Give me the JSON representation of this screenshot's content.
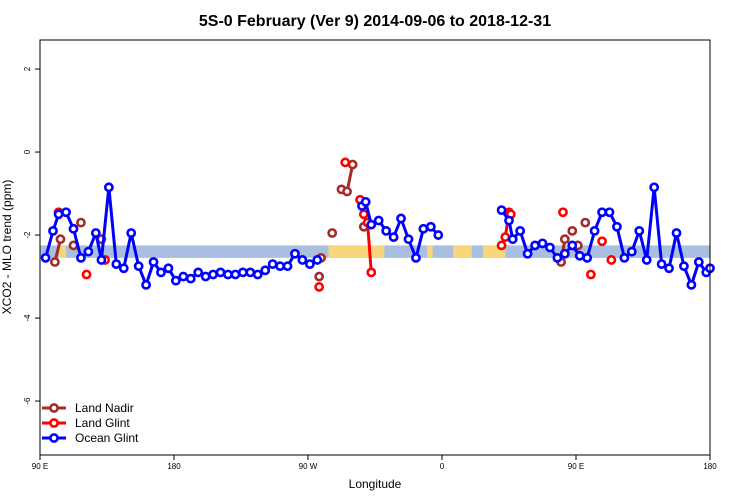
{
  "chart_data": {
    "type": "line",
    "title": "5S-0 February (Ver 9)   2014-09-06 to 2018-12-31",
    "xlabel": "Longitude",
    "ylabel": "XCO2 - MLO trend (ppm)",
    "xlim": [
      90,
      450
    ],
    "ylim": [
      -7.3,
      2.7
    ],
    "x_ticks": [
      {
        "value": 90,
        "label": "90 E"
      },
      {
        "value": 162,
        "label": "180"
      },
      {
        "value": 234,
        "label": "90 W"
      },
      {
        "value": 306,
        "label": "0"
      },
      {
        "value": 378,
        "label": "90 E"
      },
      {
        "value": 450,
        "label": "180"
      }
    ],
    "y_ticks": [
      {
        "value": 2,
        "label": "2"
      },
      {
        "value": 0,
        "label": "0"
      },
      {
        "value": -2,
        "label": "-2"
      },
      {
        "value": -4,
        "label": "-4"
      },
      {
        "value": -6,
        "label": "-6"
      }
    ],
    "band": {
      "y_min": -2.55,
      "y_max": -2.25,
      "color": "#a8bfe0",
      "highlight_color": "#f7d77a",
      "highlights": [
        [
          100,
          104
        ],
        [
          245,
          275
        ],
        [
          298,
          301
        ],
        [
          312,
          322
        ],
        [
          328,
          340
        ]
      ]
    },
    "legend": {
      "position": "bottom-left",
      "entries": [
        {
          "label": "Land Nadir",
          "color": "#a52a2a"
        },
        {
          "label": "Land Glint",
          "color": "#ff0000"
        },
        {
          "label": "Ocean Glint",
          "color": "#0000ff"
        }
      ]
    },
    "series": [
      {
        "name": "Land Nadir",
        "color": "#a52a2a",
        "segments": [
          [
            [
              98,
              -2.65
            ],
            [
              101,
              -2.1
            ]
          ],
          [
            [
              108,
              -2.25
            ]
          ],
          [
            [
              112,
              -1.7
            ]
          ],
          [
            [
              123,
              -2.1
            ]
          ],
          [
            [
              240,
              -3.0
            ]
          ],
          [
            [
              241,
              -2.55
            ]
          ],
          [
            [
              247,
              -1.95
            ]
          ],
          [
            [
              252,
              -0.9
            ],
            [
              255,
              -0.95
            ],
            [
              258,
              -0.3
            ]
          ],
          [
            [
              264,
              -1.8
            ]
          ],
          [
            [
              370,
              -2.65
            ],
            [
              372,
              -2.1
            ]
          ],
          [
            [
              376,
              -1.9
            ]
          ],
          [
            [
              379,
              -2.25
            ]
          ],
          [
            [
              383,
              -1.7
            ]
          ]
        ]
      },
      {
        "name": "Land Glint",
        "color": "#ff0000",
        "segments": [
          [
            [
              100,
              -1.45
            ]
          ],
          [
            [
              115,
              -2.95
            ]
          ],
          [
            [
              125,
              -2.6
            ]
          ],
          [
            [
              240,
              -3.25
            ]
          ],
          [
            [
              254,
              -0.25
            ]
          ],
          [
            [
              262,
              -1.15
            ],
            [
              264,
              -1.5
            ],
            [
              266,
              -1.7
            ],
            [
              268,
              -2.9
            ]
          ],
          [
            [
              338,
              -2.25
            ],
            [
              340,
              -2.05
            ],
            [
              342,
              -1.45
            ]
          ],
          [
            [
              342,
              -1.5
            ],
            [
              343,
              -1.5
            ]
          ],
          [
            [
              371,
              -1.45
            ]
          ],
          [
            [
              386,
              -2.95
            ]
          ],
          [
            [
              392,
              -2.15
            ]
          ],
          [
            [
              397,
              -2.6
            ]
          ]
        ]
      },
      {
        "name": "Ocean Glint",
        "color": "#0000ff",
        "segments": [
          [
            [
              93,
              -2.55
            ],
            [
              97,
              -1.9
            ],
            [
              100,
              -1.5
            ],
            [
              104,
              -1.45
            ],
            [
              108,
              -1.85
            ],
            [
              112,
              -2.55
            ],
            [
              116,
              -2.4
            ],
            [
              120,
              -1.95
            ],
            [
              123,
              -2.6
            ],
            [
              127,
              -0.85
            ],
            [
              131,
              -2.7
            ],
            [
              135,
              -2.8
            ],
            [
              139,
              -1.95
            ],
            [
              143,
              -2.75
            ],
            [
              147,
              -3.2
            ],
            [
              151,
              -2.65
            ],
            [
              155,
              -2.9
            ],
            [
              159,
              -2.8
            ],
            [
              163,
              -3.1
            ],
            [
              167,
              -3.0
            ],
            [
              171,
              -3.05
            ],
            [
              175,
              -2.9
            ],
            [
              179,
              -3.0
            ],
            [
              183,
              -2.95
            ],
            [
              187,
              -2.9
            ],
            [
              191,
              -2.95
            ],
            [
              195,
              -2.95
            ],
            [
              199,
              -2.9
            ],
            [
              203,
              -2.9
            ],
            [
              207,
              -2.95
            ],
            [
              211,
              -2.85
            ],
            [
              215,
              -2.7
            ],
            [
              219,
              -2.75
            ],
            [
              223,
              -2.75
            ],
            [
              227,
              -2.45
            ],
            [
              231,
              -2.6
            ],
            [
              235,
              -2.7
            ],
            [
              239,
              -2.6
            ]
          ],
          [
            [
              263,
              -1.3
            ],
            [
              265,
              -1.2
            ],
            [
              268,
              -1.75
            ],
            [
              272,
              -1.65
            ],
            [
              276,
              -1.9
            ],
            [
              280,
              -2.05
            ],
            [
              284,
              -1.6
            ],
            [
              288,
              -2.1
            ],
            [
              292,
              -2.55
            ],
            [
              296,
              -1.85
            ],
            [
              300,
              -1.8
            ],
            [
              304,
              -2.0
            ]
          ],
          [
            [
              338,
              -1.4
            ],
            [
              342,
              -1.65
            ],
            [
              344,
              -2.1
            ],
            [
              348,
              -1.9
            ],
            [
              352,
              -2.45
            ],
            [
              356,
              -2.25
            ],
            [
              360,
              -2.2
            ],
            [
              364,
              -2.3
            ],
            [
              368,
              -2.55
            ],
            [
              372,
              -2.45
            ],
            [
              376,
              -2.25
            ],
            [
              380,
              -2.5
            ],
            [
              384,
              -2.55
            ],
            [
              388,
              -1.9
            ],
            [
              392,
              -1.45
            ],
            [
              396,
              -1.45
            ],
            [
              400,
              -1.8
            ],
            [
              404,
              -2.55
            ],
            [
              408,
              -2.4
            ],
            [
              412,
              -1.9
            ],
            [
              416,
              -2.6
            ],
            [
              420,
              -0.85
            ],
            [
              424,
              -2.7
            ],
            [
              428,
              -2.8
            ],
            [
              432,
              -1.95
            ],
            [
              436,
              -2.75
            ],
            [
              440,
              -3.2
            ],
            [
              444,
              -2.65
            ],
            [
              448,
              -2.9
            ],
            [
              450,
              -2.8
            ]
          ]
        ]
      }
    ]
  }
}
